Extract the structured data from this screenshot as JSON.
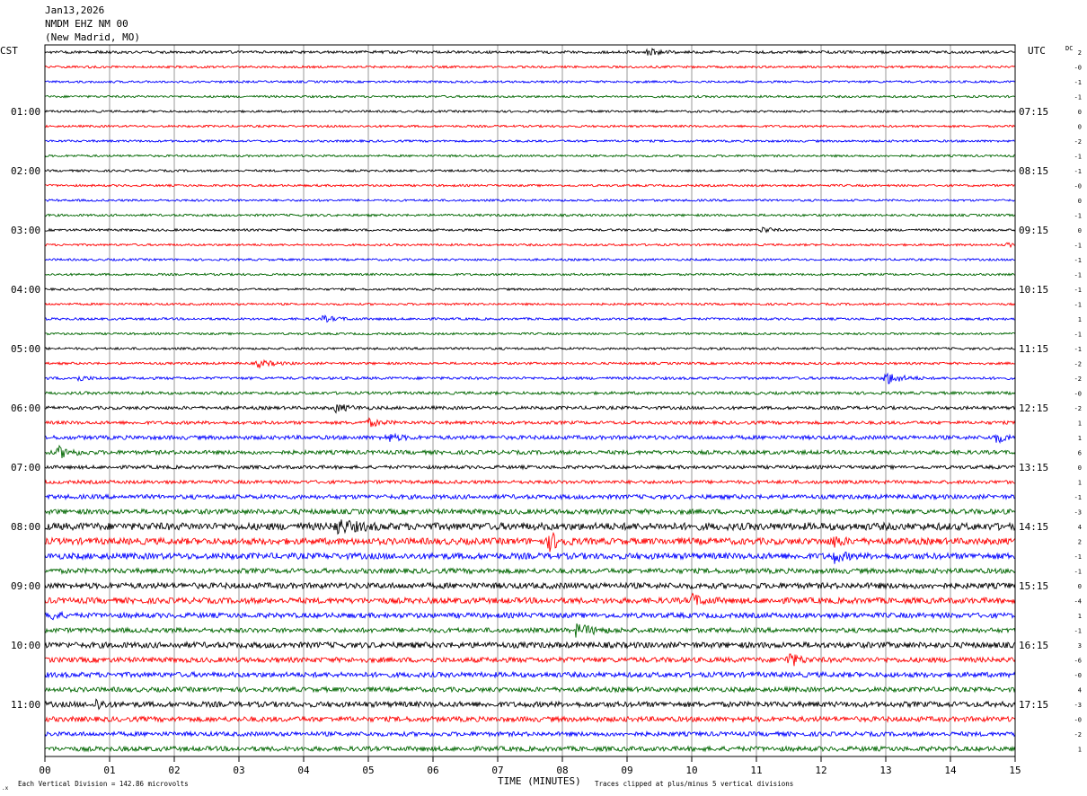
{
  "header": {
    "date": "Jan13,2026",
    "station": "NMDM EHZ NM 00",
    "location": "(New Madrid, MO)"
  },
  "labels": {
    "left_tz": "CST",
    "right_tz": "UTC",
    "dc": "DC",
    "xlabel": "TIME (MINUTES)",
    "scale_note": "Each Vertical Division =  142.86 microvolts",
    "clip_note": "Traces clipped at plus/minus 5 vertical divisions"
  },
  "chart_data": {
    "type": "line",
    "title": "NMDM EHZ NM 00",
    "xlabel": "TIME (MINUTES)",
    "xlim": [
      0,
      15
    ],
    "x_ticks": [
      "00",
      "01",
      "02",
      "03",
      "04",
      "05",
      "06",
      "07",
      "08",
      "09",
      "10",
      "11",
      "12",
      "13",
      "14",
      "15"
    ],
    "trace_minutes": 15,
    "trace_count": 48,
    "colors": [
      "#000000",
      "#ff0000",
      "#0000ff",
      "#006600"
    ],
    "left_hour_labels": [
      "01:00",
      "02:00",
      "03:00",
      "04:00",
      "05:00",
      "06:00",
      "07:00",
      "08:00",
      "09:00",
      "10:00",
      "11:00"
    ],
    "right_hour_labels": [
      "07:15",
      "08:15",
      "09:15",
      "10:15",
      "11:15",
      "12:15",
      "13:15",
      "14:15",
      "15:15",
      "16:15",
      "17:15"
    ],
    "dc_offsets": [
      "2",
      "-0",
      "-1",
      "-1",
      "0",
      "0",
      "-2",
      "-1",
      "-1",
      "-0",
      "0",
      "-1",
      "0",
      "-1",
      "-1",
      "-1",
      "-1",
      "-1",
      "1",
      "-1",
      "-1",
      "-2",
      "-2",
      "-0",
      "-2",
      "1",
      "1",
      "6",
      "0",
      "1",
      "-1",
      "-3",
      "4",
      "2",
      "-1",
      "-1",
      "0",
      "-4",
      "1",
      "-1",
      "3",
      "-6",
      "-0",
      "4",
      "-3",
      "-0",
      "-2",
      "1"
    ],
    "trace_amplitude": [
      1.5,
      1.2,
      1.2,
      1.2,
      1.2,
      1.2,
      1.2,
      1.2,
      1.2,
      1.2,
      1.2,
      1.3,
      1.3,
      1.2,
      1.2,
      1.2,
      1.2,
      1.2,
      1.3,
      1.2,
      1.3,
      1.3,
      1.5,
      1.6,
      1.8,
      1.8,
      2.2,
      2.2,
      1.9,
      1.9,
      2.4,
      2.8,
      4.0,
      3.6,
      3.4,
      2.8,
      3.2,
      3.2,
      2.8,
      2.6,
      3.2,
      2.8,
      2.8,
      2.6,
      3.0,
      2.8,
      2.4,
      2.6
    ],
    "events": [
      {
        "trace": 0,
        "minute": 9.3,
        "amplitude": 4,
        "duration": 0.5
      },
      {
        "trace": 12,
        "minute": 11.1,
        "amplitude": 4,
        "duration": 0.3
      },
      {
        "trace": 13,
        "minute": 14.9,
        "amplitude": 3,
        "duration": 0.1
      },
      {
        "trace": 18,
        "minute": 4.3,
        "amplitude": 3,
        "duration": 0.6
      },
      {
        "trace": 21,
        "minute": 3.3,
        "amplitude": 4,
        "duration": 0.6
      },
      {
        "trace": 22,
        "minute": 0.5,
        "amplitude": 3,
        "duration": 0.4
      },
      {
        "trace": 22,
        "minute": 13.0,
        "amplitude": 7,
        "duration": 0.6
      },
      {
        "trace": 24,
        "minute": 4.5,
        "amplitude": 4,
        "duration": 0.6
      },
      {
        "trace": 25,
        "minute": 5.0,
        "amplitude": 4,
        "duration": 0.5
      },
      {
        "trace": 26,
        "minute": 5.3,
        "amplitude": 4,
        "duration": 0.5
      },
      {
        "trace": 26,
        "minute": 14.7,
        "amplitude": 5,
        "duration": 0.5
      },
      {
        "trace": 27,
        "minute": 0.2,
        "amplitude": 6,
        "duration": 0.6
      },
      {
        "trace": 32,
        "minute": 4.5,
        "amplitude": 7,
        "duration": 0.8
      },
      {
        "trace": 33,
        "minute": 7.8,
        "amplitude": 10,
        "duration": 0.4
      },
      {
        "trace": 33,
        "minute": 12.2,
        "amplitude": 6,
        "duration": 0.3
      },
      {
        "trace": 34,
        "minute": 12.2,
        "amplitude": 6,
        "duration": 0.4
      },
      {
        "trace": 37,
        "minute": 10.0,
        "amplitude": 6,
        "duration": 0.5
      },
      {
        "trace": 38,
        "minute": 0.1,
        "amplitude": 5,
        "duration": 0.3
      },
      {
        "trace": 39,
        "minute": 8.2,
        "amplitude": 6,
        "duration": 0.8
      },
      {
        "trace": 41,
        "minute": 11.5,
        "amplitude": 8,
        "duration": 0.4
      },
      {
        "trace": 44,
        "minute": 0.8,
        "amplitude": 6,
        "duration": 0.3
      }
    ]
  }
}
